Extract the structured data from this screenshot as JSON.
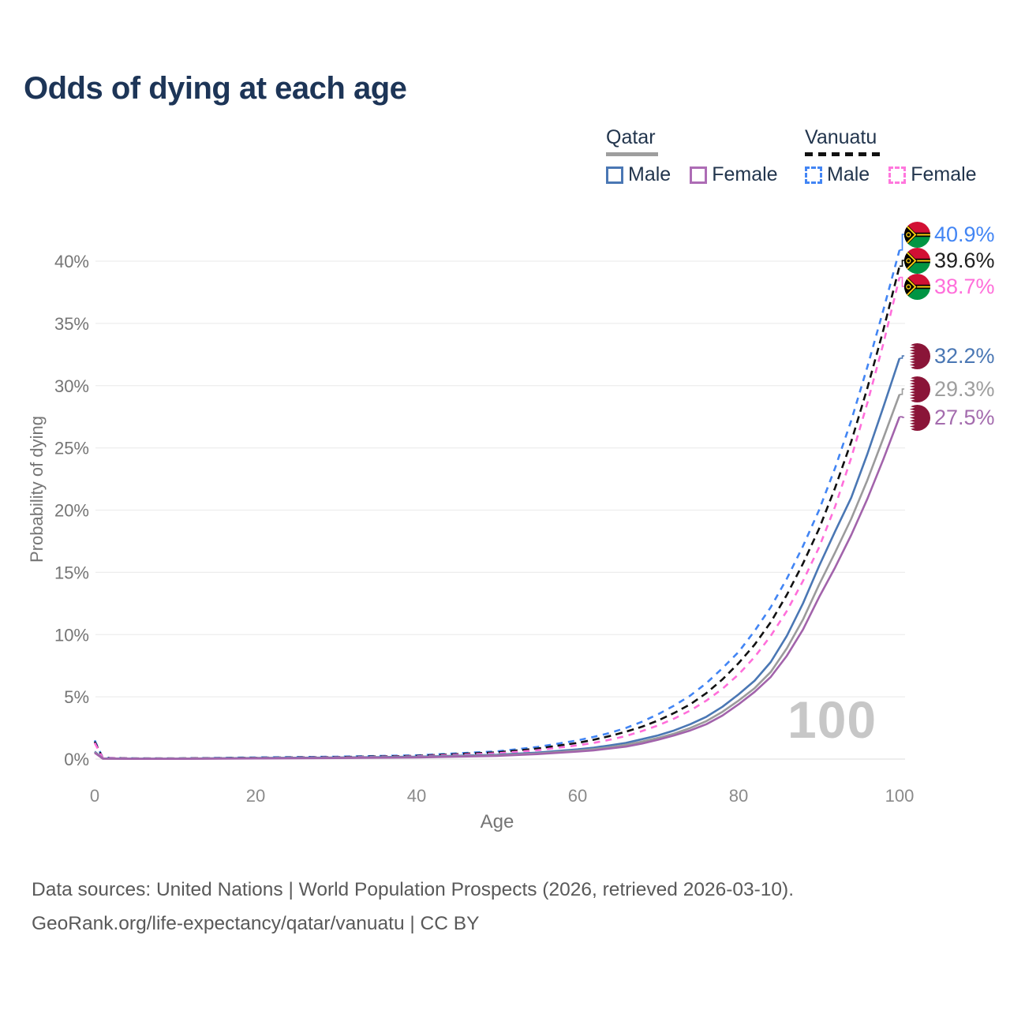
{
  "title": "Odds of dying at each age",
  "legend": {
    "groups": [
      {
        "country": "Qatar",
        "style": "solid",
        "items": [
          {
            "label": "Male"
          },
          {
            "label": "Female"
          }
        ]
      },
      {
        "country": "Vanuatu",
        "style": "dashed",
        "items": [
          {
            "label": "Male"
          },
          {
            "label": "Female"
          }
        ]
      }
    ]
  },
  "chart_data": {
    "type": "line",
    "title": "Odds of dying at each age",
    "xlabel": "Age",
    "ylabel": "Probability of dying",
    "xlim": [
      0,
      100
    ],
    "ylim_percent": [
      0,
      43
    ],
    "x_ticks": [
      0,
      20,
      40,
      60,
      80,
      100
    ],
    "y_ticks_percent": [
      0,
      5,
      10,
      15,
      20,
      25,
      30,
      35,
      40
    ],
    "y_tick_suffix": "%",
    "grid": "horizontal",
    "legend_position": "top-right",
    "watermark": "100",
    "ages": [
      0,
      1,
      5,
      10,
      20,
      30,
      40,
      50,
      55,
      60,
      62,
      64,
      66,
      68,
      70,
      72,
      74,
      76,
      78,
      80,
      82,
      84,
      86,
      88,
      90,
      92,
      94,
      96,
      98,
      100
    ],
    "series": [
      {
        "name": "Vanuatu Male",
        "country": "Vanuatu",
        "sex": "male",
        "flag": "vanuatu",
        "color": "#4285f4",
        "dash": "8 7",
        "end_label": "40.9%",
        "label_color": "#4285f4",
        "values_percent": [
          1.5,
          0.1,
          0.05,
          0.05,
          0.13,
          0.19,
          0.3,
          0.62,
          0.97,
          1.5,
          1.78,
          2.1,
          2.5,
          3.0,
          3.6,
          4.3,
          5.1,
          6.1,
          7.3,
          8.6,
          10.3,
          12.2,
          14.5,
          17.1,
          20.0,
          23.4,
          27.2,
          31.5,
          36.1,
          40.9
        ]
      },
      {
        "name": "Vanuatu Both sexes",
        "country": "Vanuatu",
        "sex": "both",
        "flag": "vanuatu",
        "color": "#111111",
        "dash": "9 6",
        "end_label": "39.6%",
        "label_color": "#1f1f1f",
        "values_percent": [
          1.4,
          0.09,
          0.05,
          0.05,
          0.11,
          0.16,
          0.26,
          0.54,
          0.84,
          1.3,
          1.55,
          1.85,
          2.2,
          2.6,
          3.1,
          3.7,
          4.4,
          5.3,
          6.4,
          7.7,
          9.2,
          11.0,
          13.2,
          15.7,
          18.5,
          21.8,
          25.5,
          29.8,
          34.5,
          39.6
        ]
      },
      {
        "name": "Vanuatu Female",
        "country": "Vanuatu",
        "sex": "female",
        "flag": "vanuatu",
        "color": "#ff6eda",
        "dash": "8 7",
        "end_label": "38.7%",
        "label_color": "#ff6eda",
        "values_percent": [
          1.3,
          0.08,
          0.04,
          0.04,
          0.09,
          0.14,
          0.22,
          0.46,
          0.71,
          1.1,
          1.3,
          1.55,
          1.85,
          2.25,
          2.7,
          3.25,
          3.9,
          4.7,
          5.65,
          6.8,
          8.2,
          9.9,
          11.9,
          14.3,
          17.0,
          20.3,
          24.2,
          28.6,
          33.4,
          38.7
        ]
      },
      {
        "name": "Qatar Male",
        "country": "Qatar",
        "sex": "male",
        "flag": "qatar",
        "color": "#4a77b4",
        "dash": null,
        "end_label": "32.2%",
        "label_color": "#4a77b4",
        "values_percent": [
          0.6,
          0.05,
          0.03,
          0.03,
          0.09,
          0.12,
          0.19,
          0.35,
          0.52,
          0.78,
          0.92,
          1.1,
          1.3,
          1.6,
          1.9,
          2.3,
          2.8,
          3.4,
          4.2,
          5.2,
          6.3,
          7.8,
          9.9,
          12.5,
          15.5,
          18.3,
          21.0,
          24.5,
          28.3,
          32.2
        ]
      },
      {
        "name": "Qatar Both sexes",
        "country": "Qatar",
        "sex": "both",
        "flag": "qatar",
        "color": "#9b9b9b",
        "dash": null,
        "end_label": "29.3%",
        "label_color": "#9e9e9e",
        "values_percent": [
          0.55,
          0.04,
          0.02,
          0.03,
          0.07,
          0.1,
          0.16,
          0.3,
          0.45,
          0.68,
          0.8,
          0.95,
          1.15,
          1.4,
          1.7,
          2.05,
          2.5,
          3.05,
          3.8,
          4.7,
          5.7,
          7.0,
          8.9,
          11.2,
          14.0,
          16.6,
          19.3,
          22.4,
          25.8,
          29.3
        ]
      },
      {
        "name": "Qatar Female",
        "country": "Qatar",
        "sex": "female",
        "flag": "qatar",
        "color": "#a263ab",
        "dash": null,
        "end_label": "27.5%",
        "label_color": "#a46cae",
        "values_percent": [
          0.5,
          0.04,
          0.02,
          0.02,
          0.05,
          0.08,
          0.13,
          0.26,
          0.4,
          0.6,
          0.7,
          0.85,
          1.0,
          1.25,
          1.55,
          1.9,
          2.3,
          2.8,
          3.5,
          4.4,
          5.4,
          6.6,
          8.3,
          10.4,
          13.0,
          15.4,
          18.0,
          20.9,
          24.1,
          27.5
        ]
      }
    ]
  },
  "source": {
    "line1": "Data sources: United Nations | World Population Prospects (2026, retrieved 2026-03-10).",
    "line2": "GeoRank.org/life-expectancy/qatar/vanuatu | CC BY"
  }
}
